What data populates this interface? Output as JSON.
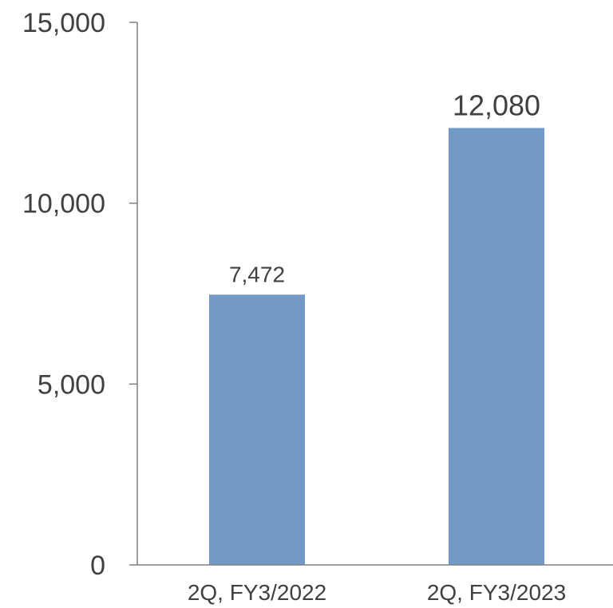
{
  "chart_data": {
    "type": "bar",
    "title": "",
    "xlabel": "",
    "ylabel": "",
    "categories": [
      "2Q, FY3/2022",
      "2Q, FY3/2023"
    ],
    "values": [
      7472,
      12080
    ],
    "data_labels": [
      "7,472",
      "12,080"
    ],
    "ylim": [
      0,
      15000
    ],
    "y_ticks": [
      0,
      5000,
      10000,
      15000
    ],
    "y_tick_labels": [
      "0",
      "5,000",
      "10,000",
      "15,000"
    ],
    "grid": false,
    "legend": "none",
    "bar_color": "#7399c6",
    "axis_color": "#7f7f7f",
    "text_color": "#404040"
  }
}
